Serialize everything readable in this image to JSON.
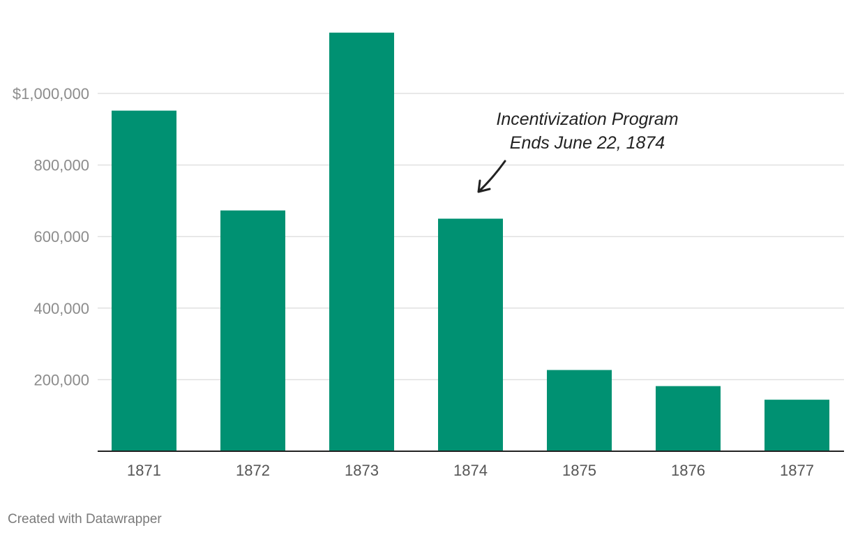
{
  "chart_data": {
    "type": "bar",
    "categories": [
      "1871",
      "1872",
      "1873",
      "1874",
      "1875",
      "1876",
      "1877"
    ],
    "values": [
      952000,
      673000,
      1170000,
      650000,
      227000,
      182000,
      144000
    ],
    "ylim": [
      0,
      1200000
    ],
    "yticks": [
      200000,
      400000,
      600000,
      800000,
      1000000
    ],
    "ytick_labels": [
      "200,000",
      "400,000",
      "600,000",
      "800,000",
      "$1,000,000"
    ],
    "bar_color": "#009172",
    "grid": true,
    "annotation": {
      "line1": "Incentivization Program",
      "line2": "Ends June 22, 1874",
      "points_to": "1874"
    }
  },
  "footer": {
    "credit": "Created with Datawrapper"
  }
}
